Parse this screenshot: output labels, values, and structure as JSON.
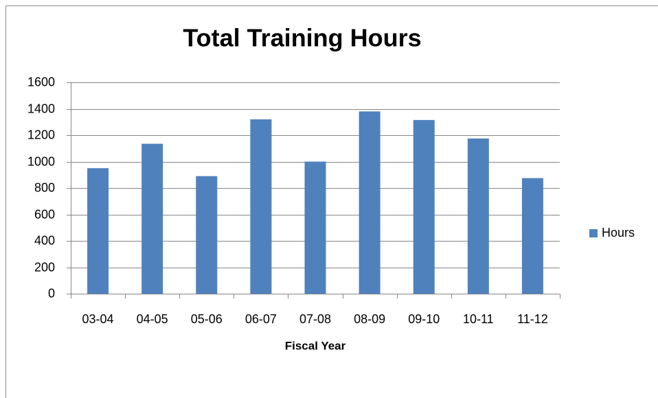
{
  "chart_data": {
    "type": "bar",
    "title": "Total Training Hours",
    "x_label": "Fiscal Year",
    "categories": [
      "03-04",
      "04-05",
      "05-06",
      "06-07",
      "07-08",
      "08-09",
      "09-10",
      "10-11",
      "11-12"
    ],
    "series": [
      {
        "name": "Hours",
        "color": "#4f81bd",
        "values": [
          950,
          1135,
          890,
          1320,
          1000,
          1380,
          1315,
          1175,
          875
        ]
      }
    ],
    "ylim": [
      0,
      1600
    ],
    "yticks": [
      0,
      200,
      400,
      600,
      800,
      1000,
      1200,
      1400,
      1600
    ],
    "grid": true,
    "legend": "right"
  }
}
